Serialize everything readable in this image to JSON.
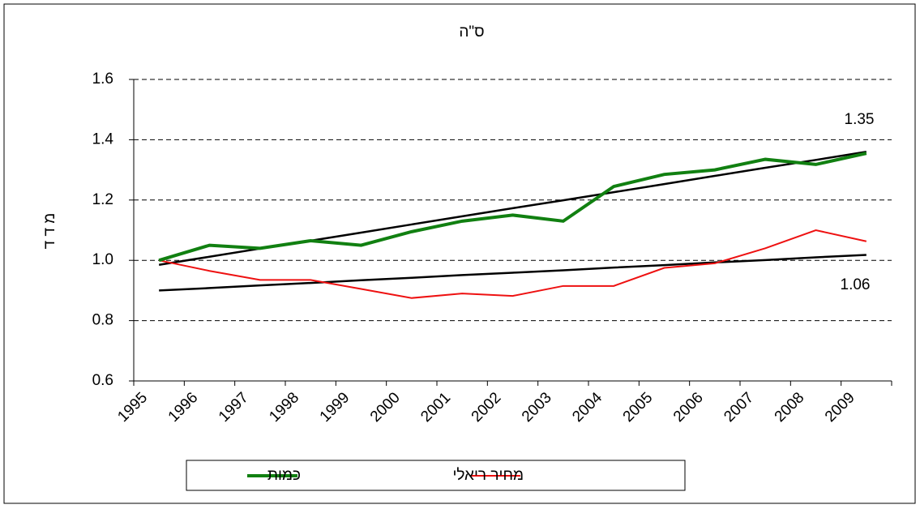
{
  "chart_data": {
    "type": "line",
    "title": "ס\"ה",
    "y_label": "מ ד ד",
    "categories": [
      "1995",
      "1996",
      "1997",
      "1998",
      "1999",
      "2000",
      "2001",
      "2002",
      "2003",
      "2004",
      "2005",
      "2006",
      "2007",
      "2008",
      "2009"
    ],
    "series": [
      {
        "name": "כמות",
        "color": "#118011",
        "width": 4,
        "values": [
          1.0,
          1.05,
          1.04,
          1.065,
          1.05,
          1.095,
          1.13,
          1.15,
          1.13,
          1.245,
          1.285,
          1.3,
          1.335,
          1.318,
          1.355
        ]
      },
      {
        "name": "מחיר ריאלי",
        "color": "#ee1111",
        "width": 2,
        "values": [
          1.0,
          0.965,
          0.935,
          0.935,
          0.905,
          0.875,
          0.89,
          0.882,
          0.915,
          0.915,
          0.975,
          0.99,
          1.04,
          1.1,
          1.063
        ]
      },
      {
        "color": "#000000",
        "width": 2.5,
        "values": [
          0.985,
          1.012,
          1.039,
          1.065,
          1.092,
          1.119,
          1.146,
          1.173,
          1.199,
          1.226,
          1.253,
          1.28,
          1.307,
          1.333,
          1.36
        ]
      },
      {
        "color": "#000000",
        "width": 2.5,
        "values": [
          0.9,
          0.908,
          0.917,
          0.925,
          0.934,
          0.942,
          0.951,
          0.959,
          0.967,
          0.976,
          0.984,
          0.993,
          1.001,
          1.01,
          1.018
        ]
      }
    ],
    "annotations": [
      "1.35",
      "1.06"
    ],
    "ylim": [
      0.6,
      1.6
    ],
    "yticks": [
      0.6,
      0.8,
      {
        "value": 1.0,
        "label": "1.0"
      },
      1.2,
      1.4,
      1.6
    ],
    "grid": true
  }
}
